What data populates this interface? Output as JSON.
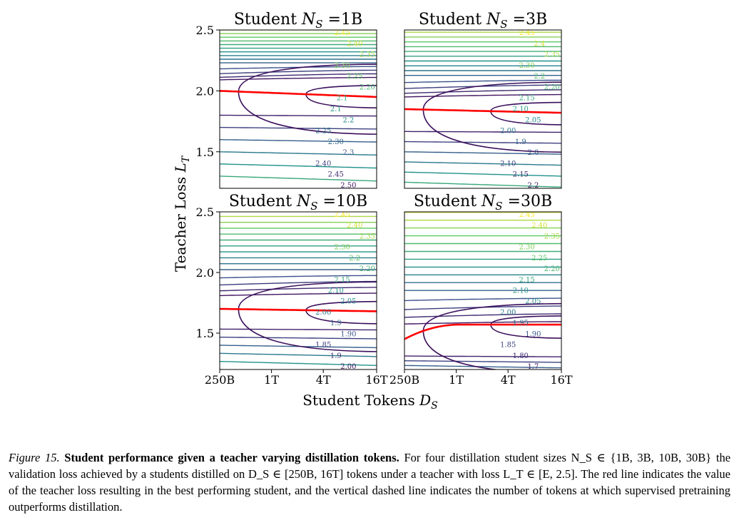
{
  "chart_data": {
    "type": "contour",
    "xlabel": "Student Tokens D_S",
    "ylabel": "Teacher Loss L_T",
    "x_ticks": [
      "250B",
      "1T",
      "4T",
      "16T"
    ],
    "y_ticks": [
      "1.5",
      "2.0",
      "2.5"
    ],
    "xlim": [
      "250B",
      "16T"
    ],
    "ylim": [
      1.2,
      2.5
    ],
    "x_scale": "log",
    "panels": [
      {
        "title": "Student N_S =1B",
        "title_parts": [
          "Student ",
          "N",
          "S",
          " =1B"
        ],
        "optimal_teacher_loss": [
          2.0,
          1.95
        ],
        "contour_labels": [
          "2.45",
          "2.40",
          "2.35",
          "2.30",
          "2.25",
          "2.20",
          "2.1",
          "2.1",
          "2.2",
          "2.25",
          "2.30",
          "2.3",
          "2.40",
          "2.45",
          "2.50"
        ]
      },
      {
        "title": "Student N_S =3B",
        "title_parts": [
          "Student ",
          "N",
          "S",
          " =3B"
        ],
        "optimal_teacher_loss": [
          1.85,
          1.82
        ],
        "contour_labels": [
          "2.45",
          "2.4",
          "2.35",
          "2.30",
          "2.2",
          "2.20",
          "2.15",
          "2.10",
          "2.05",
          "2.00",
          "1.9",
          "2.0",
          "2.10",
          "2.15",
          "2.2"
        ]
      },
      {
        "title": "Student N_S =10B",
        "title_parts": [
          "Student ",
          "N",
          "S",
          " =10B"
        ],
        "optimal_teacher_loss": [
          1.7,
          1.68
        ],
        "contour_labels": [
          "2.45",
          "2.40",
          "2.35",
          "2.30",
          "2.2",
          "2.20",
          "2.15",
          "2.10",
          "2.05",
          "2.00",
          "1.9",
          "1.90",
          "1.85",
          "1.9",
          "2.00"
        ]
      },
      {
        "title": "Student N_S =30B",
        "title_parts": [
          "Student ",
          "N",
          "S",
          " =30B"
        ],
        "optimal_teacher_loss": [
          1.45,
          1.57
        ],
        "contour_labels": [
          "2.45",
          "2.40",
          "2.35",
          "2.30",
          "2.25",
          "2.20",
          "2.15",
          "2.10",
          "2.05",
          "2.00",
          "1.95",
          "1.90",
          "1.85",
          "1.80",
          "1.7"
        ]
      }
    ],
    "colormap": "viridis",
    "optimal_line_color": "#ff0000"
  },
  "caption": {
    "label": "Figure 15.",
    "bold_title": "Student performance given a teacher varying distillation tokens.",
    "text": "For four distillation student sizes N_S ∈ {1B, 3B, 10B, 30B} the validation loss achieved by a students distilled on D_S ∈ [250B, 16T] tokens under a teacher with loss L_T ∈ [E, 2.5]. The red line indicates the value of the teacher loss resulting in the best performing student, and the vertical dashed line indicates the number of tokens at which supervised pretraining outperforms distillation."
  }
}
